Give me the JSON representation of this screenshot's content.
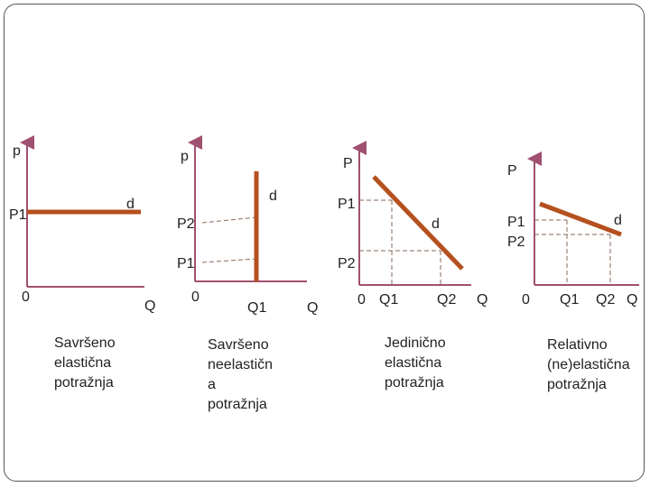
{
  "colors": {
    "axis": "#a05070",
    "curve": "#b5501f",
    "guide": "#8a6a5a",
    "text": "#222222"
  },
  "panels": [
    {
      "axis_price": "p",
      "axis_quantity": "Q",
      "origin": "0",
      "price_labels": [
        "P1"
      ],
      "quantity_labels": [],
      "curve_label": "d",
      "caption": "Savršeno\nelastična\npotražnja"
    },
    {
      "axis_price": "p",
      "axis_quantity": "Q",
      "origin": "0",
      "price_labels": [
        "P2",
        "P1"
      ],
      "quantity_labels": [
        "Q1"
      ],
      "curve_label": "d",
      "caption": "Savršeno\nneelastičn\na\npotražnja"
    },
    {
      "axis_price": "P",
      "axis_quantity": "Q",
      "origin": "0",
      "price_labels": [
        "P1",
        "P2"
      ],
      "quantity_labels": [
        "Q1",
        "Q2"
      ],
      "curve_label": "d",
      "caption": "Jedinično\nelastična\npotražnja"
    },
    {
      "axis_price": "P",
      "axis_quantity": "Q",
      "origin": "0",
      "price_labels": [
        "P1",
        "P2"
      ],
      "quantity_labels": [
        "Q1",
        "Q2"
      ],
      "curve_label": "d",
      "caption": "Relativno\n(ne)elastična\npotražnja"
    }
  ]
}
